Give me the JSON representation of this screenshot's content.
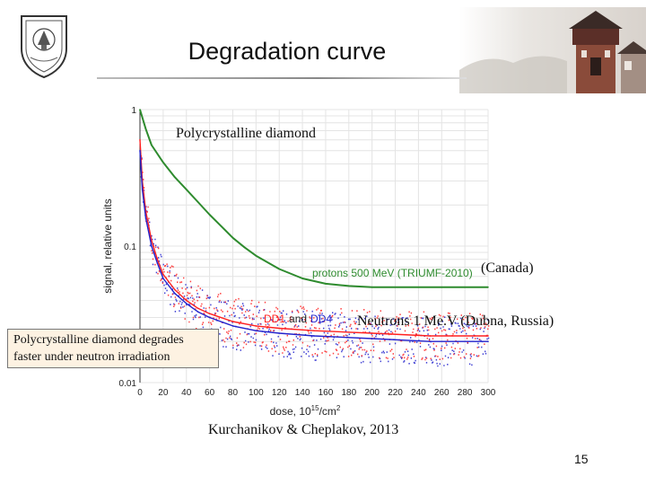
{
  "slide": {
    "title": "Degradation curve",
    "page_number": "15",
    "note_box": {
      "line1": "Polycrystalline diamond degrades",
      "line2": "faster under neutron irradiation"
    },
    "label_polycrystalline": "Polycrystalline diamond",
    "label_canada": "(Canada)",
    "label_neutrons": "Neutrons 1 Me.V (Dubna, Russia)",
    "credit": "Kurchanikov & Cheplakov, 2013"
  },
  "colors": {
    "protons": "#2e8b2e",
    "dd1": "#ff2020",
    "dd4": "#2222cc",
    "grid": "#e4e4e4"
  },
  "chart_data": {
    "type": "line",
    "xlabel": "dose, 10",
    "xlabel_exp": "15",
    "xlabel_unit": "/cm",
    "xlabel_unit_exp": "2",
    "ylabel": "signal, relative units",
    "xlim": [
      0,
      300
    ],
    "ylim": [
      0.01,
      1
    ],
    "y_scale": "log",
    "x_ticks": [
      "0",
      "20",
      "40",
      "60",
      "80",
      "100",
      "120",
      "140",
      "160",
      "180",
      "200",
      "220",
      "240",
      "260",
      "280",
      "300"
    ],
    "y_ticks": [
      {
        "value": 1,
        "label": "1"
      },
      {
        "value": 0.1,
        "label": "0.1"
      },
      {
        "value": 0.01,
        "label": "0.01"
      }
    ],
    "series": [
      {
        "name": "protons 500 MeV (TRIUMF-2010)",
        "x": [
          0,
          5,
          10,
          20,
          30,
          40,
          50,
          60,
          70,
          80,
          90,
          100,
          120,
          140,
          160,
          180,
          200,
          220,
          240,
          260,
          280,
          300
        ],
        "y": [
          1.0,
          0.72,
          0.55,
          0.41,
          0.32,
          0.26,
          0.21,
          0.17,
          0.14,
          0.115,
          0.098,
          0.085,
          0.068,
          0.058,
          0.053,
          0.051,
          0.05,
          0.05,
          0.05,
          0.05,
          0.05,
          0.05
        ]
      },
      {
        "name": "DD1",
        "x": [
          0,
          2,
          5,
          10,
          15,
          20,
          30,
          40,
          50,
          60,
          80,
          100,
          120,
          150,
          200,
          250,
          300
        ],
        "y": [
          0.6,
          0.3,
          0.18,
          0.11,
          0.08,
          0.062,
          0.048,
          0.04,
          0.035,
          0.032,
          0.028,
          0.026,
          0.025,
          0.024,
          0.023,
          0.022,
          0.022
        ]
      },
      {
        "name": "DD4",
        "x": [
          0,
          2,
          5,
          10,
          15,
          20,
          30,
          40,
          50,
          60,
          80,
          100,
          120,
          150,
          200,
          250,
          300
        ],
        "y": [
          0.5,
          0.26,
          0.16,
          0.1,
          0.075,
          0.058,
          0.045,
          0.038,
          0.033,
          0.03,
          0.026,
          0.024,
          0.023,
          0.022,
          0.021,
          0.02,
          0.02
        ]
      }
    ],
    "legend": {
      "protons_label": "protons 500 MeV (TRIUMF-2010)",
      "dd_label_1": "DD1",
      "dd_label_and": "and",
      "dd_label_2": "DD4"
    },
    "grid": true
  }
}
